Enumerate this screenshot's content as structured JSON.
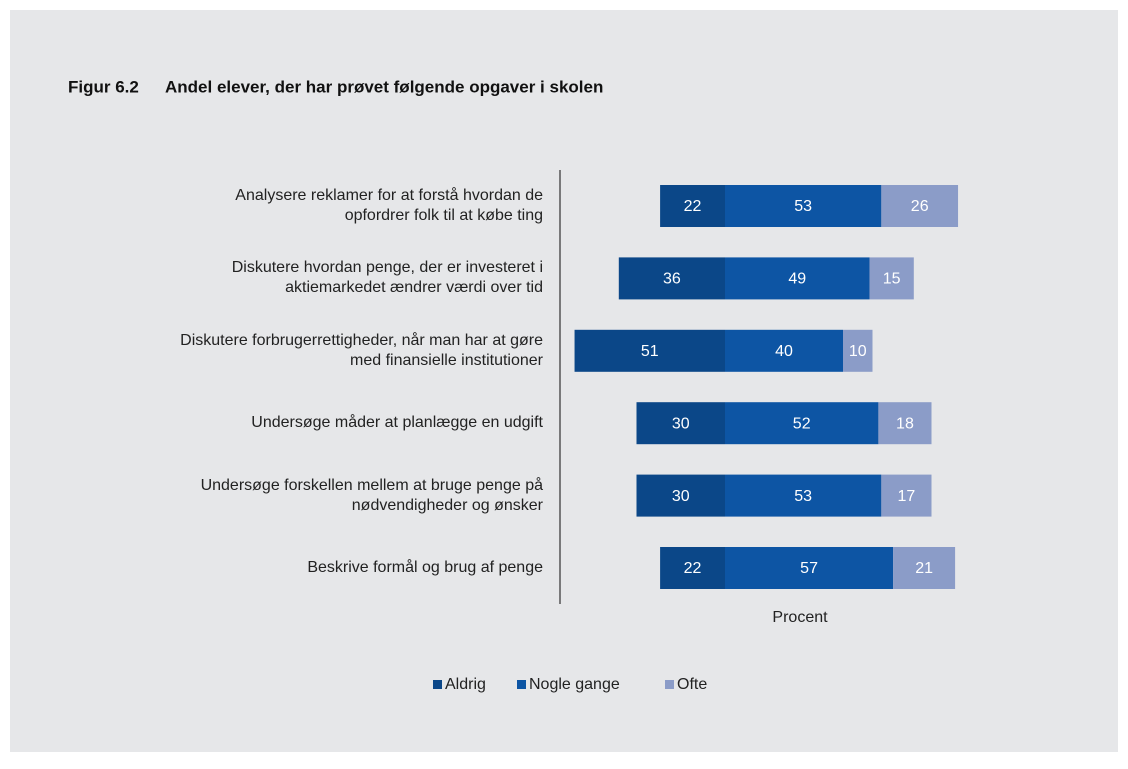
{
  "chart_data": {
    "type": "bar",
    "orientation": "horizontal",
    "layout": "diverging",
    "figure_label": "Figur 6.2",
    "title": "Andel elever, der har prøvet følgende opgaver i skolen",
    "xlabel": "Procent",
    "categories": [
      "Analysere reklamer for at forstå hvordan de\nopfordrer folk til at købe ting",
      "Diskutere hvordan penge, der er investeret i\naktiemarkedet ændrer værdi over tid",
      "Diskutere forbrugerrettigheder, når man har at gøre\nmed finansielle institutioner",
      "Undersøge måder at planlægge en udgift",
      "Undersøge forskellen mellem at bruge penge på\nnødvendigheder og ønsker",
      "Beskrive formål og brug af penge"
    ],
    "series": [
      {
        "name": "Aldrig",
        "color": "#0b4788",
        "values": [
          22,
          36,
          51,
          30,
          30,
          22
        ]
      },
      {
        "name": "Nogle gange",
        "color": "#0d55a4",
        "values": [
          53,
          49,
          40,
          52,
          53,
          57
        ]
      },
      {
        "name": "Ofte",
        "color": "#8b9cc8",
        "values": [
          26,
          15,
          10,
          18,
          17,
          21
        ]
      }
    ],
    "legend": "bottom"
  }
}
